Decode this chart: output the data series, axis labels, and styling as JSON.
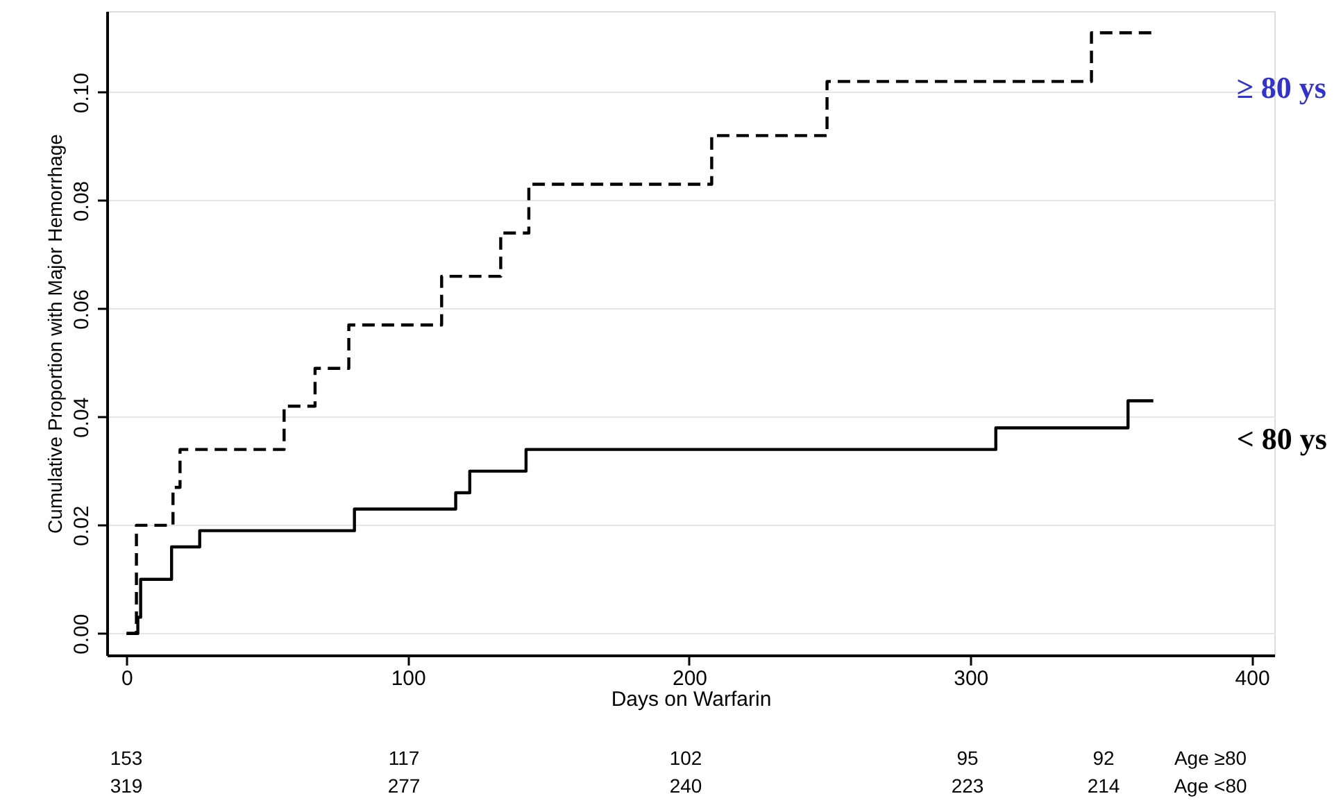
{
  "chart_data": {
    "type": "step",
    "xlabel": "Days on Warfarin",
    "ylabel": "Cumulative Proportion with Major Hemorrhage",
    "xlim": [
      -7,
      408
    ],
    "xticks": [
      0,
      100,
      200,
      300,
      400
    ],
    "ylim": [
      -0.004,
      0.115
    ],
    "yticks": [
      {
        "value": 0,
        "label": "0.00"
      },
      {
        "value": 0.02,
        "label": "0.02"
      },
      {
        "value": 0.04,
        "label": "0.04"
      },
      {
        "value": 0.06,
        "label": "0.06"
      },
      {
        "value": 0.08,
        "label": "0.08"
      },
      {
        "value": 0.1,
        "label": "0.10"
      }
    ],
    "grid": "y",
    "marker": "none",
    "series": [
      {
        "name": "≥ 80 ys",
        "color": "#000000",
        "line_style": "dashed",
        "x": [
          0,
          3.5,
          16.5,
          19,
          56,
          67,
          79,
          112,
          133,
          143,
          208,
          249,
          343,
          365
        ],
        "values": [
          0,
          0.02,
          0.027,
          0.034,
          0.042,
          0.049,
          0.057,
          0.066,
          0.074,
          0.083,
          0.092,
          0.102,
          0.111,
          0.111
        ]
      },
      {
        "name": "< 80 ys",
        "color": "#000000",
        "line_style": "solid",
        "x": [
          0,
          4,
          5,
          16,
          26,
          81,
          117,
          122,
          142,
          309,
          356,
          365
        ],
        "values": [
          0,
          0.003,
          0.01,
          0.016,
          0.019,
          0.023,
          0.026,
          0.03,
          0.034,
          0.038,
          0.043,
          0.043
        ]
      }
    ],
    "annotations": [
      "153",
      "117",
      "102",
      "95",
      "92",
      "Age ≥80",
      "319",
      "277",
      "240",
      "223",
      "214",
      "Age <80"
    ]
  }
}
